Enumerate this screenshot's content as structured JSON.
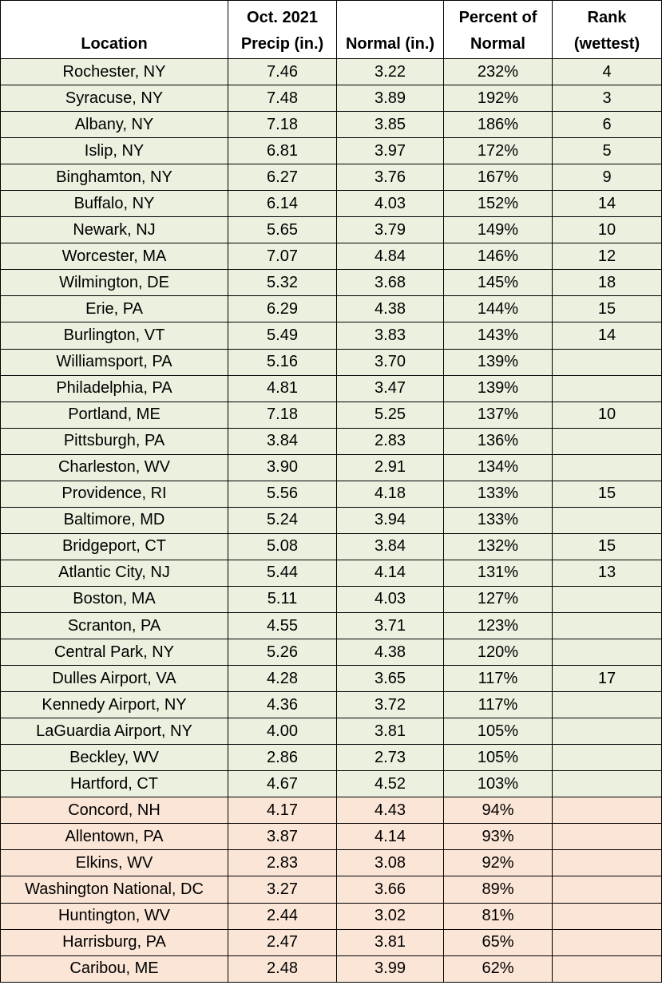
{
  "headers": [
    {
      "line1": "",
      "line2": "Location"
    },
    {
      "line1": "Oct. 2021",
      "line2": "Precip (in.)"
    },
    {
      "line1": "",
      "line2": "Normal (in.)"
    },
    {
      "line1": "Percent of",
      "line2": "Normal"
    },
    {
      "line1": "Rank",
      "line2": "(wettest)"
    }
  ],
  "colors": {
    "above_normal_row": "#ebf1de",
    "below_normal_row": "#fbe5d6",
    "border": "#000000"
  },
  "rows": [
    {
      "location": "Rochester, NY",
      "precip": "7.46",
      "normal": "3.22",
      "percent": "232%",
      "rank": "4"
    },
    {
      "location": "Syracuse, NY",
      "precip": "7.48",
      "normal": "3.89",
      "percent": "192%",
      "rank": "3"
    },
    {
      "location": "Albany, NY",
      "precip": "7.18",
      "normal": "3.85",
      "percent": "186%",
      "rank": "6"
    },
    {
      "location": "Islip, NY",
      "precip": "6.81",
      "normal": "3.97",
      "percent": "172%",
      "rank": "5"
    },
    {
      "location": "Binghamton, NY",
      "precip": "6.27",
      "normal": "3.76",
      "percent": "167%",
      "rank": "9"
    },
    {
      "location": "Buffalo, NY",
      "precip": "6.14",
      "normal": "4.03",
      "percent": "152%",
      "rank": "14"
    },
    {
      "location": "Newark, NJ",
      "precip": "5.65",
      "normal": "3.79",
      "percent": "149%",
      "rank": "10"
    },
    {
      "location": "Worcester, MA",
      "precip": "7.07",
      "normal": "4.84",
      "percent": "146%",
      "rank": "12"
    },
    {
      "location": "Wilmington, DE",
      "precip": "5.32",
      "normal": "3.68",
      "percent": "145%",
      "rank": "18"
    },
    {
      "location": "Erie, PA",
      "precip": "6.29",
      "normal": "4.38",
      "percent": "144%",
      "rank": "15"
    },
    {
      "location": "Burlington, VT",
      "precip": "5.49",
      "normal": "3.83",
      "percent": "143%",
      "rank": "14"
    },
    {
      "location": "Williamsport, PA",
      "precip": "5.16",
      "normal": "3.70",
      "percent": "139%",
      "rank": ""
    },
    {
      "location": "Philadelphia, PA",
      "precip": "4.81",
      "normal": "3.47",
      "percent": "139%",
      "rank": ""
    },
    {
      "location": "Portland, ME",
      "precip": "7.18",
      "normal": "5.25",
      "percent": "137%",
      "rank": "10"
    },
    {
      "location": "Pittsburgh, PA",
      "precip": "3.84",
      "normal": "2.83",
      "percent": "136%",
      "rank": ""
    },
    {
      "location": "Charleston, WV",
      "precip": "3.90",
      "normal": "2.91",
      "percent": "134%",
      "rank": ""
    },
    {
      "location": "Providence, RI",
      "precip": "5.56",
      "normal": "4.18",
      "percent": "133%",
      "rank": "15"
    },
    {
      "location": "Baltimore, MD",
      "precip": "5.24",
      "normal": "3.94",
      "percent": "133%",
      "rank": ""
    },
    {
      "location": "Bridgeport, CT",
      "precip": "5.08",
      "normal": "3.84",
      "percent": "132%",
      "rank": "15"
    },
    {
      "location": "Atlantic City, NJ",
      "precip": "5.44",
      "normal": "4.14",
      "percent": "131%",
      "rank": "13"
    },
    {
      "location": "Boston, MA",
      "precip": "5.11",
      "normal": "4.03",
      "percent": "127%",
      "rank": ""
    },
    {
      "location": "Scranton, PA",
      "precip": "4.55",
      "normal": "3.71",
      "percent": "123%",
      "rank": ""
    },
    {
      "location": "Central Park, NY",
      "precip": "5.26",
      "normal": "4.38",
      "percent": "120%",
      "rank": ""
    },
    {
      "location": "Dulles Airport, VA",
      "precip": "4.28",
      "normal": "3.65",
      "percent": "117%",
      "rank": "17"
    },
    {
      "location": "Kennedy Airport, NY",
      "precip": "4.36",
      "normal": "3.72",
      "percent": "117%",
      "rank": ""
    },
    {
      "location": "LaGuardia Airport, NY",
      "precip": "4.00",
      "normal": "3.81",
      "percent": "105%",
      "rank": ""
    },
    {
      "location": "Beckley, WV",
      "precip": "2.86",
      "normal": "2.73",
      "percent": "105%",
      "rank": ""
    },
    {
      "location": "Hartford, CT",
      "precip": "4.67",
      "normal": "4.52",
      "percent": "103%",
      "rank": ""
    },
    {
      "location": "Concord, NH",
      "precip": "4.17",
      "normal": "4.43",
      "percent": "94%",
      "rank": ""
    },
    {
      "location": "Allentown, PA",
      "precip": "3.87",
      "normal": "4.14",
      "percent": "93%",
      "rank": ""
    },
    {
      "location": "Elkins, WV",
      "precip": "2.83",
      "normal": "3.08",
      "percent": "92%",
      "rank": ""
    },
    {
      "location": "Washington National, DC",
      "precip": "3.27",
      "normal": "3.66",
      "percent": "89%",
      "rank": ""
    },
    {
      "location": "Huntington, WV",
      "precip": "2.44",
      "normal": "3.02",
      "percent": "81%",
      "rank": ""
    },
    {
      "location": "Harrisburg, PA",
      "precip": "2.47",
      "normal": "3.81",
      "percent": "65%",
      "rank": ""
    },
    {
      "location": "Caribou, ME",
      "precip": "2.48",
      "normal": "3.99",
      "percent": "62%",
      "rank": ""
    }
  ]
}
